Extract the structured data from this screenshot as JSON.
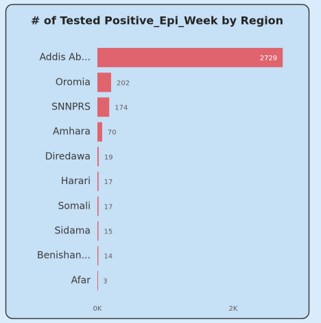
{
  "chart_data": {
    "type": "bar",
    "orientation": "horizontal",
    "title": "# of Tested Positive_Epi_Week by Region",
    "categories": [
      "Addis Ab...",
      "Oromia",
      "SNNPRS",
      "Amhara",
      "Diredawa",
      "Harari",
      "Somali",
      "Sidama",
      "Benishan...",
      "Afar"
    ],
    "values": [
      2729,
      202,
      174,
      70,
      19,
      17,
      17,
      15,
      14,
      3
    ],
    "color": "#e0646e",
    "xlim": [
      0,
      3000
    ],
    "xticks": [
      {
        "value": 0,
        "label": "0K"
      },
      {
        "value": 2000,
        "label": "2K"
      }
    ],
    "grid": false
  }
}
